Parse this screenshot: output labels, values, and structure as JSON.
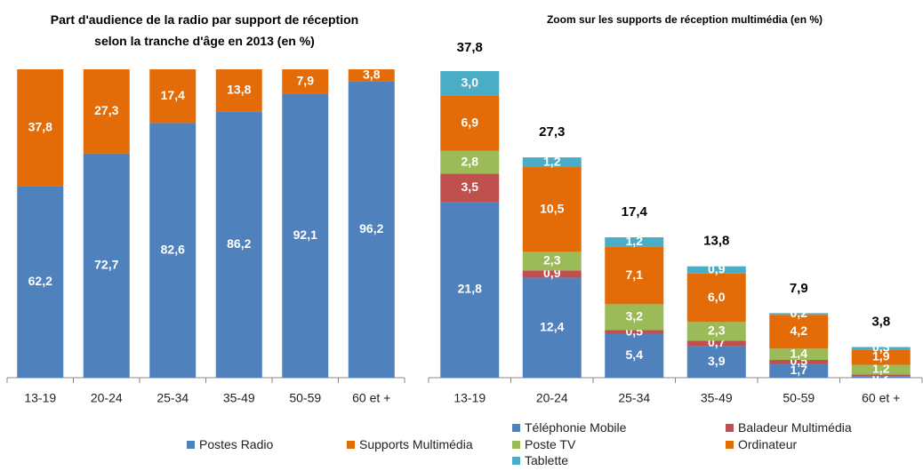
{
  "chart_data": [
    {
      "type": "bar",
      "stacked": true,
      "title": "Part d'audience  de la radio par support de réception selon la tranche d'âge en 2013 (en %)",
      "categories": [
        "13-19",
        "20-24",
        "25-34",
        "35-49",
        "50-59",
        "60 et +"
      ],
      "series": [
        {
          "name": "Postes Radio",
          "color": "#4f81bd",
          "values": [
            62.2,
            72.7,
            82.6,
            86.2,
            92.1,
            96.2
          ],
          "value_labels": [
            "62,2",
            "72,7",
            "82,6",
            "86,2",
            "92,1",
            "96,2"
          ]
        },
        {
          "name": "Supports Multimédia",
          "color": "#e36c09",
          "values": [
            37.8,
            27.3,
            17.4,
            13.8,
            7.9,
            3.8
          ],
          "value_labels": [
            "37,8",
            "27,3",
            "17,4",
            "13,8",
            "7,9",
            "3,8"
          ]
        }
      ]
    },
    {
      "type": "bar",
      "stacked": true,
      "title": "Zoom sur les supports de réception multimédia (en %)",
      "categories": [
        "13-19",
        "20-24",
        "25-34",
        "35-49",
        "50-59",
        "60 et +"
      ],
      "series": [
        {
          "name": "Téléphonie Mobile",
          "color": "#4f81bd",
          "values": [
            21.8,
            12.4,
            5.4,
            3.9,
            1.7,
            0.2
          ],
          "value_labels": [
            "21,8",
            "12,4",
            "5,4",
            "3,9",
            "1,7",
            "0,2"
          ]
        },
        {
          "name": "Baladeur Multimédia",
          "color": "#c0504d",
          "values": [
            3.5,
            0.9,
            0.5,
            0.7,
            0.5,
            0.2
          ],
          "value_labels": [
            "3,5",
            "0,9",
            "0,5",
            "0,7",
            "0,5",
            null
          ]
        },
        {
          "name": "Poste TV",
          "color": "#9bbb59",
          "values": [
            2.8,
            2.3,
            3.2,
            2.3,
            1.4,
            1.2
          ],
          "value_labels": [
            "2,8",
            "2,3",
            "3,2",
            "2,3",
            "1,4",
            "1,2"
          ]
        },
        {
          "name": "Ordinateur",
          "color": "#e36c09",
          "values": [
            6.9,
            10.5,
            7.1,
            6.0,
            4.2,
            1.9
          ],
          "value_labels": [
            "6,9",
            "10,5",
            "7,1",
            "6,0",
            "4,2",
            "1,9"
          ]
        },
        {
          "name": "Tablette",
          "color": "#4bacc6",
          "values": [
            3.0,
            1.2,
            1.2,
            0.9,
            0.2,
            0.3
          ],
          "value_labels": [
            "3,0",
            "1,2",
            "1,2",
            "0,9",
            "0,2",
            "0,3"
          ]
        }
      ],
      "totals": [
        37.8,
        27.3,
        17.4,
        13.8,
        7.9,
        3.8
      ],
      "total_labels": [
        "37,8",
        "27,3",
        "17,4",
        "13,8",
        "7,9",
        "3,8"
      ]
    }
  ]
}
